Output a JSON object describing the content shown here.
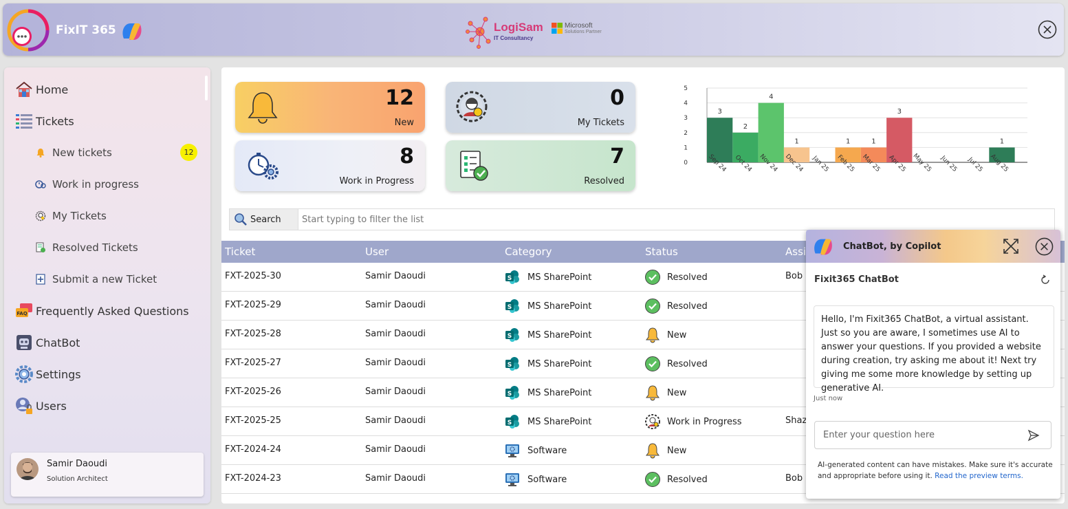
{
  "header": {
    "app_title": "FixIT 365",
    "partner_name": "LogiSam",
    "partner_sub": "IT Consultancy",
    "ms_line1": "Microsoft",
    "ms_line2": "Solutions Partner"
  },
  "sidebar": {
    "home": "Home",
    "tickets": "Tickets",
    "new_tickets": "New tickets",
    "new_badge": "12",
    "work_in_progress": "Work in progress",
    "my_tickets": "My Tickets",
    "resolved_tickets": "Resolved Tickets",
    "submit_ticket": "Submit a new Ticket",
    "faq": "Frequently Asked Questions",
    "chatbot": "ChatBot",
    "settings": "Settings",
    "users": "Users"
  },
  "user": {
    "name": "Samir Daoudi",
    "role": "Solution Architect"
  },
  "cards": {
    "new": {
      "value": "12",
      "label": "New"
    },
    "my": {
      "value": "0",
      "label": "My Tickets"
    },
    "wip": {
      "value": "8",
      "label": "Work in Progress"
    },
    "resolved": {
      "value": "7",
      "label": "Resolved"
    }
  },
  "chart_data": {
    "type": "bar",
    "categories": [
      "Sep 24",
      "Oct 24",
      "Nov 24",
      "Dec 24",
      "Jan 25",
      "Feb 25",
      "Mar 25",
      "Apr 25",
      "May 25",
      "Jun 25",
      "Jul 25",
      "Aug 25"
    ],
    "values": [
      3,
      2,
      4,
      1,
      0,
      1,
      1,
      3,
      0,
      0,
      0,
      1
    ],
    "colors": [
      "#2e7d58",
      "#3bab62",
      "#5cc46c",
      "#f7c48e",
      "#f0f0f0",
      "#f5a84e",
      "#f48a5a",
      "#d55a64",
      "#f0f0f0",
      "#f0f0f0",
      "#f0f0f0",
      "#2e7d58"
    ],
    "ylim": [
      0,
      5
    ],
    "yticks": [
      "0",
      "1",
      "2",
      "3",
      "4",
      "5"
    ],
    "title": "",
    "xlabel": "",
    "ylabel": ""
  },
  "search": {
    "button": "Search",
    "placeholder": "Start typing to filter the list"
  },
  "table": {
    "headers": {
      "ticket": "Ticket",
      "user": "User",
      "category": "Category",
      "status": "Status",
      "assigned": "Assi"
    },
    "rows": [
      {
        "ticket": "FXT-2025-30",
        "user": "Samir Daoudi",
        "category": "MS SharePoint",
        "cat_icon": "sharepoint",
        "status": "Resolved",
        "status_icon": "resolved",
        "assigned": "Bob"
      },
      {
        "ticket": "FXT-2025-29",
        "user": "Samir Daoudi",
        "category": "MS SharePoint",
        "cat_icon": "sharepoint",
        "status": "Resolved",
        "status_icon": "resolved",
        "assigned": ""
      },
      {
        "ticket": "FXT-2025-28",
        "user": "Samir Daoudi",
        "category": "MS SharePoint",
        "cat_icon": "sharepoint",
        "status": "New",
        "status_icon": "new",
        "assigned": ""
      },
      {
        "ticket": "FXT-2025-27",
        "user": "Samir Daoudi",
        "category": "MS SharePoint",
        "cat_icon": "sharepoint",
        "status": "Resolved",
        "status_icon": "resolved",
        "assigned": ""
      },
      {
        "ticket": "FXT-2025-26",
        "user": "Samir Daoudi",
        "category": "MS SharePoint",
        "cat_icon": "sharepoint",
        "status": "New",
        "status_icon": "new",
        "assigned": ""
      },
      {
        "ticket": "FXT-2025-25",
        "user": "Samir Daoudi",
        "category": "MS SharePoint",
        "cat_icon": "sharepoint",
        "status": "Work in Progress",
        "status_icon": "wip",
        "assigned": "Shaz"
      },
      {
        "ticket": "FXT-2024-24",
        "user": "Samir Daoudi",
        "category": "Software",
        "cat_icon": "software",
        "status": "New",
        "status_icon": "new",
        "assigned": ""
      },
      {
        "ticket": "FXT-2024-23",
        "user": "Samir Daoudi",
        "category": "Software",
        "cat_icon": "software",
        "status": "Resolved",
        "status_icon": "resolved",
        "assigned": "Bob"
      }
    ]
  },
  "chatbot": {
    "title": "ChatBot, by Copilot",
    "bot_name": "Fixit365 ChatBot",
    "message": "Hello, I'm Fixit365 ChatBot, a virtual assistant. Just so you are aware, I sometimes use AI to answer your questions. If you provided a website during creation, try asking me about it! Next try giving me some more knowledge by setting up generative AI.",
    "time": "Just now",
    "input_placeholder": "Enter your question here",
    "disclaimer": "AI-generated content can have mistakes. Make sure it's accurate and appropriate before using it.",
    "disclaimer_link": "Read the preview terms."
  }
}
